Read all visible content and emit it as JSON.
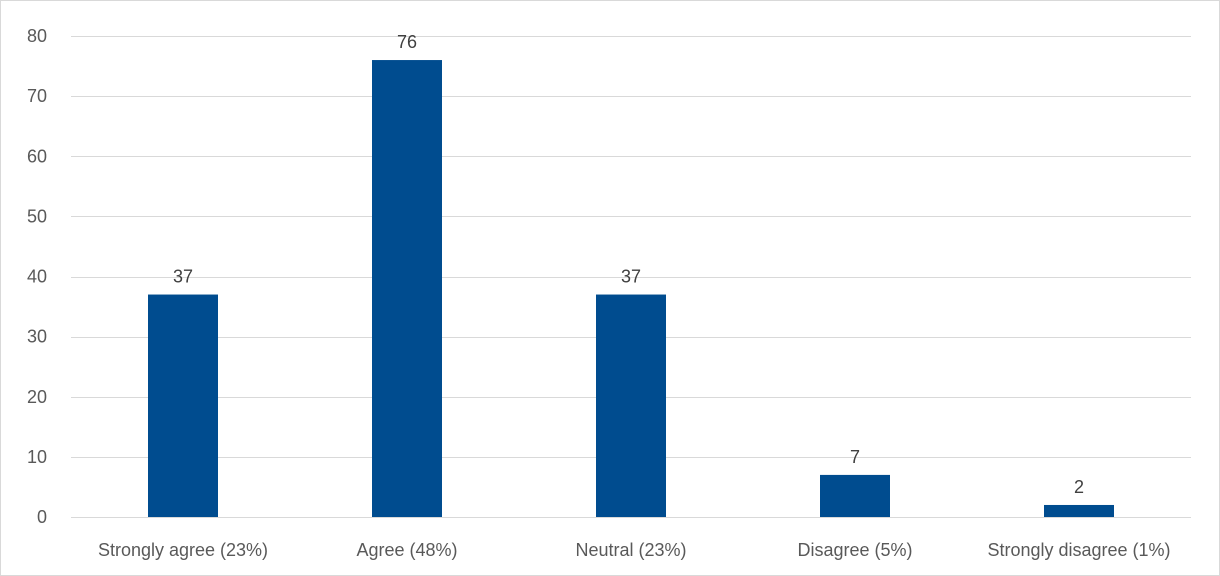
{
  "chart_data": {
    "type": "bar",
    "title": "",
    "xlabel": "",
    "ylabel": "",
    "categories": [
      "Strongly agree (23%)",
      "Agree (48%)",
      "Neutral (23%)",
      "Disagree (5%)",
      "Strongly disagree (1%)"
    ],
    "values": [
      37,
      76,
      37,
      7,
      2
    ],
    "data_labels": [
      "37",
      "76",
      "37",
      "7",
      "2"
    ],
    "ylim": [
      0,
      80
    ],
    "yticks": [
      0,
      10,
      20,
      30,
      40,
      50,
      60,
      70,
      80
    ],
    "grid": true,
    "legend": "none",
    "bar_color": "#004C8F"
  }
}
